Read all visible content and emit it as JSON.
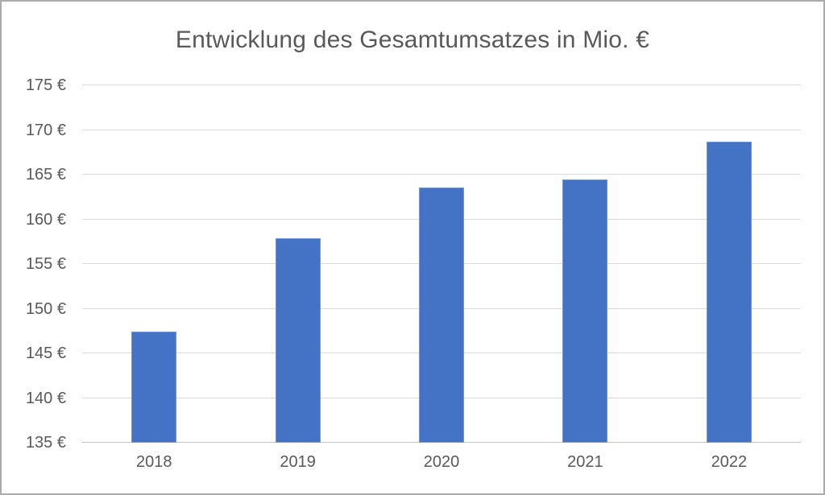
{
  "window": {
    "background": "#ffffff",
    "border_color": "#ababab"
  },
  "chart_data": {
    "type": "bar",
    "title": "Entwicklung des Gesamtumsatzes in Mio. €",
    "categories": [
      "2018",
      "2019",
      "2020",
      "2021",
      "2022"
    ],
    "values": [
      147.4,
      157.9,
      163.6,
      164.5,
      168.7
    ],
    "xlabel": "",
    "ylabel": "",
    "ylim": [
      135,
      175
    ],
    "y_tick_step": 5,
    "y_ticks": [
      {
        "value": 175,
        "label": "175 €"
      },
      {
        "value": 170,
        "label": "170 €"
      },
      {
        "value": 165,
        "label": "165 €"
      },
      {
        "value": 160,
        "label": "160 €"
      },
      {
        "value": 155,
        "label": "155 €"
      },
      {
        "value": 150,
        "label": "150 €"
      },
      {
        "value": 145,
        "label": "145 €"
      },
      {
        "value": 140,
        "label": "140 €"
      },
      {
        "value": 135,
        "label": "135 €"
      }
    ],
    "bar_color": "#4472c4",
    "grid_color": "#d9d9d9",
    "axis_color": "#c3c3c3",
    "text_color": "#595959",
    "grid": true,
    "legend_position": "none"
  }
}
